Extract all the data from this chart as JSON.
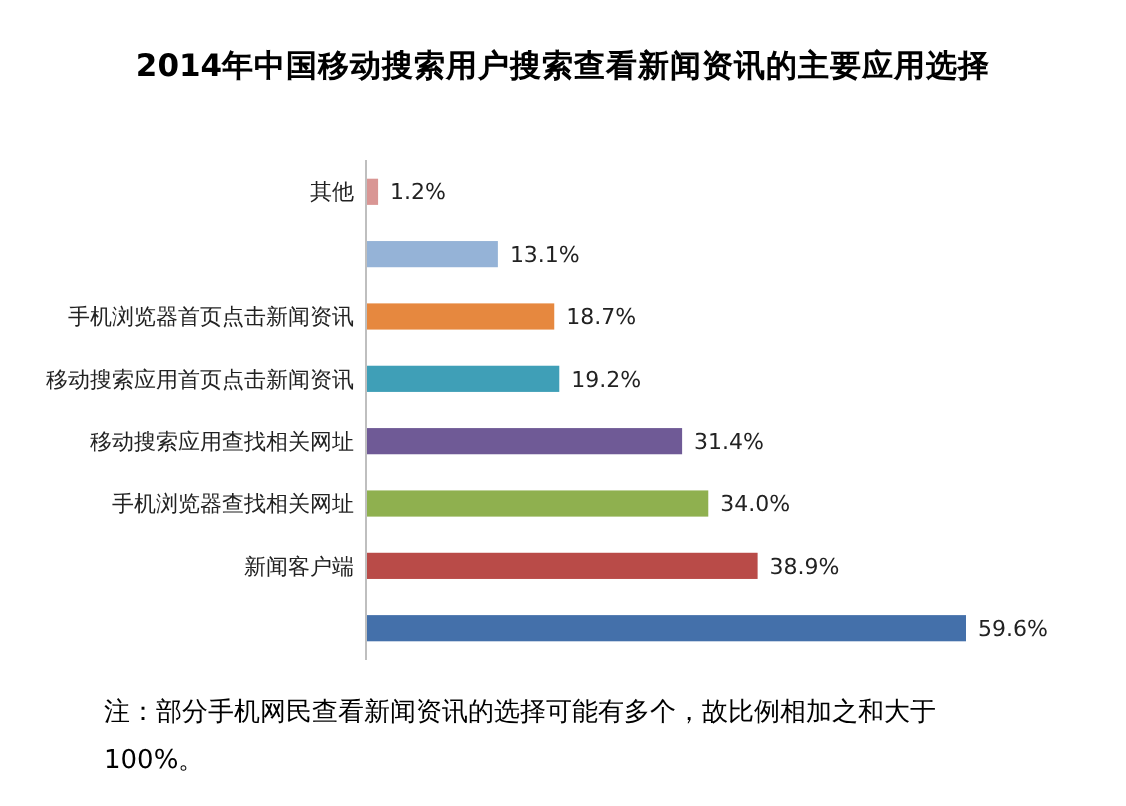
{
  "chart_data": {
    "type": "bar",
    "orientation": "horizontal",
    "title": "2014年中国移动搜索用户搜索查看新闻资讯的主要应用选择",
    "categories": [
      "其他",
      null,
      "手机浏览器首页点击新闻资讯",
      "移动搜索应用首页点击新闻资讯",
      "移动搜索应用查找相关网址",
      "手机浏览器查找相关网址",
      "新闻客户端",
      null
    ],
    "values": [
      1.2,
      13.1,
      18.7,
      19.2,
      31.4,
      34.0,
      38.9,
      59.6
    ],
    "value_labels": [
      "1.2%",
      "13.1%",
      "18.7%",
      "19.2%",
      "31.4%",
      "34.0%",
      "38.9%",
      "59.6%"
    ],
    "colors": [
      "#d99694",
      "#95b3d7",
      "#e6883f",
      "#3f9fb7",
      "#6f5a96",
      "#8fb04f",
      "#b94b48",
      "#4470aa"
    ],
    "annotations": [
      "注：部分手机网民查看新闻资讯的选择可能有多个，故比例相加之和大于100%。"
    ]
  }
}
